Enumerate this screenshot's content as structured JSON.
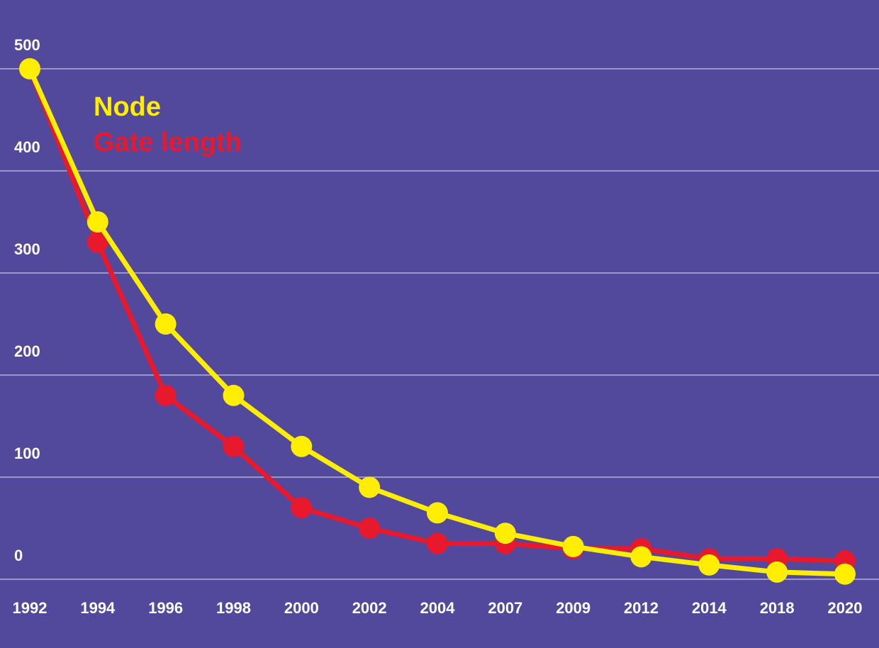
{
  "chart_data": {
    "type": "line",
    "x": [
      "1992",
      "1994",
      "1996",
      "1998",
      "2000",
      "2002",
      "2004",
      "2007",
      "2009",
      "2012",
      "2014",
      "2018",
      "2020"
    ],
    "ylim": [
      0,
      500
    ],
    "yticks": [
      0,
      100,
      200,
      300,
      400,
      500
    ],
    "grid": true,
    "legend_position": "top-left",
    "series": [
      {
        "name": "Gate length",
        "color": "#e8192c",
        "values": [
          500,
          330,
          180,
          130,
          70,
          50,
          35,
          35,
          30,
          30,
          20,
          20,
          18
        ]
      },
      {
        "name": "Node",
        "color": "#ffee00",
        "values": [
          500,
          350,
          250,
          180,
          130,
          90,
          65,
          45,
          32,
          22,
          14,
          7,
          5
        ]
      }
    ]
  }
}
